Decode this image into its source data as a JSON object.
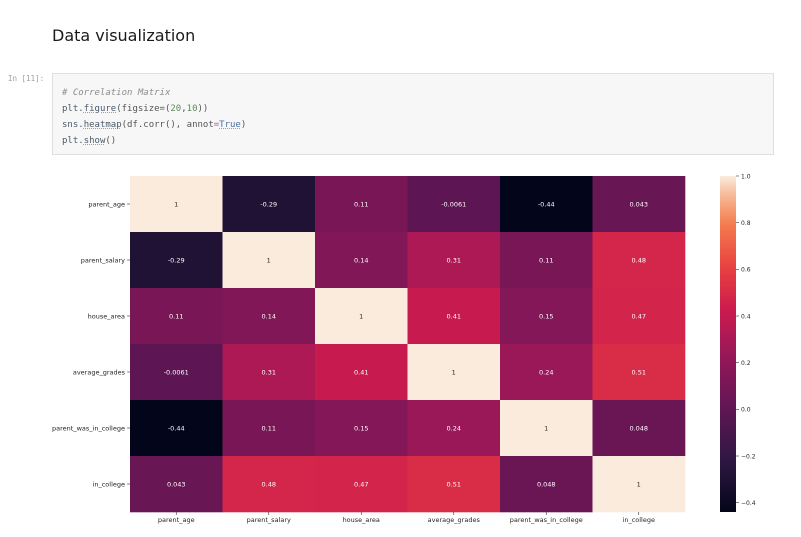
{
  "notebook": {
    "section_title": "Data visualization",
    "cell_prompt": "In [11]:",
    "code": {
      "comment": "# Correlation Matrix",
      "line2_obj": "plt",
      "line2_fn": "figure",
      "line2_open": "(figsize=(",
      "line2_n1": "20",
      "line2_sep": ",",
      "line2_n2": "10",
      "line2_close": "))",
      "line3_obj": "sns",
      "line3_fn": "heatmap",
      "line3_args": "(df.corr(), annot",
      "line3_eq": "=",
      "line3_kw": "True",
      "line3_close": ")",
      "line4_obj": "plt",
      "line4_fn": "show",
      "line4_close": "()"
    }
  },
  "chart_data": {
    "type": "heatmap",
    "title": "",
    "xlabel": "",
    "ylabel": "",
    "rows": [
      "parent_age",
      "parent_salary",
      "house_area",
      "average_grades",
      "parent_was_in_college",
      "in_college"
    ],
    "cols": [
      "parent_age",
      "parent_salary",
      "house_area",
      "average_grades",
      "parent_was_in_college",
      "in_college"
    ],
    "values": [
      [
        1,
        -0.29,
        0.11,
        -0.0061,
        -0.44,
        0.043
      ],
      [
        -0.29,
        1,
        0.14,
        0.31,
        0.11,
        0.48
      ],
      [
        0.11,
        0.14,
        1,
        0.41,
        0.15,
        0.47
      ],
      [
        -0.0061,
        0.31,
        0.41,
        1,
        0.24,
        0.51
      ],
      [
        -0.44,
        0.11,
        0.15,
        0.24,
        1,
        0.048
      ],
      [
        0.043,
        0.48,
        0.47,
        0.51,
        0.048,
        1
      ]
    ],
    "annotations": [
      [
        "1",
        "-0.29",
        "0.11",
        "-0.0061",
        "-0.44",
        "0.043"
      ],
      [
        "-0.29",
        "1",
        "0.14",
        "0.31",
        "0.11",
        "0.48"
      ],
      [
        "0.11",
        "0.14",
        "1",
        "0.41",
        "0.15",
        "0.47"
      ],
      [
        "-0.0061",
        "0.31",
        "0.41",
        "1",
        "0.24",
        "0.51"
      ],
      [
        "-0.44",
        "0.11",
        "0.15",
        "0.24",
        "1",
        "0.048"
      ],
      [
        "0.043",
        "0.48",
        "0.47",
        "0.51",
        "0.048",
        "1"
      ]
    ],
    "vmin": -0.44,
    "vmax": 1.0,
    "colormap": "rocket",
    "colorbar": {
      "ticks": [
        1.0,
        0.8,
        0.6,
        0.4,
        0.2,
        0.0,
        -0.2,
        -0.4
      ],
      "tick_labels": [
        "1.0",
        "0.8",
        "0.6",
        "0.4",
        "0.2",
        "0.0",
        "−0.2",
        "−0.4"
      ],
      "placement": "right"
    },
    "grid": false
  }
}
